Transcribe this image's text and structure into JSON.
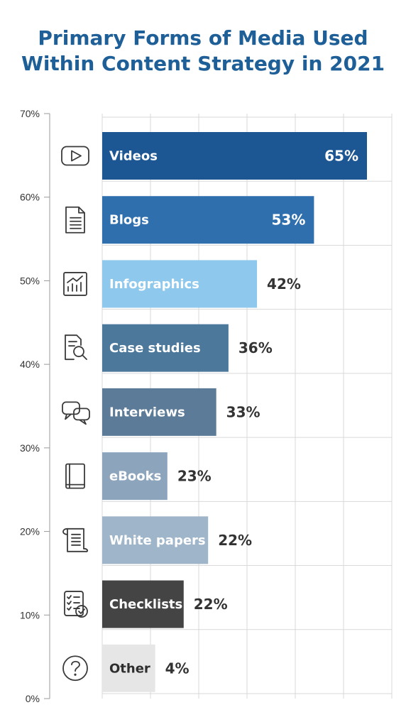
{
  "title": {
    "line1": "Primary Forms of Media Used",
    "line2": "Within Content Strategy in 2021"
  },
  "colors": {
    "title": "#1f5f98",
    "grid": "#d9d9d9",
    "axis": "#9a9a9a",
    "icon": "#3a3a3a"
  },
  "chart_data": {
    "type": "bar",
    "orientation": "horizontal",
    "title": "Primary Forms of Media Used Within Content Strategy in 2021",
    "xlabel": "",
    "ylabel": "",
    "ylim": [
      0,
      70
    ],
    "yticks": [
      "70%",
      "60%",
      "50%",
      "40%",
      "30%",
      "20%",
      "10%",
      "0%"
    ],
    "grid": true,
    "categories": [
      "Videos",
      "Blogs",
      "Infographics",
      "Case studies",
      "Interviews",
      "eBooks",
      "White papers",
      "Checklists",
      "Other"
    ],
    "values": [
      65,
      53,
      42,
      36,
      33,
      23,
      22,
      22,
      4
    ],
    "value_labels": [
      "65%",
      "53%",
      "42%",
      "36%",
      "33%",
      "23%",
      "22%",
      "22%",
      "4%"
    ],
    "display_length": [
      65,
      52,
      38,
      31,
      28,
      16,
      26,
      20,
      13
    ],
    "label_inside": [
      true,
      true,
      false,
      false,
      false,
      false,
      false,
      false,
      false
    ],
    "colors": [
      "#1d5793",
      "#2f6fae",
      "#8ec8ec",
      "#4c789c",
      "#5c7b98",
      "#8ca5bd",
      "#9fb5c9",
      "#444444",
      "#e6e6e6"
    ],
    "icons": [
      "video-play-icon",
      "document-icon",
      "infographic-chart-icon",
      "case-study-search-icon",
      "chat-bubbles-icon",
      "book-icon",
      "scroll-icon",
      "checklist-icon",
      "question-icon"
    ]
  }
}
